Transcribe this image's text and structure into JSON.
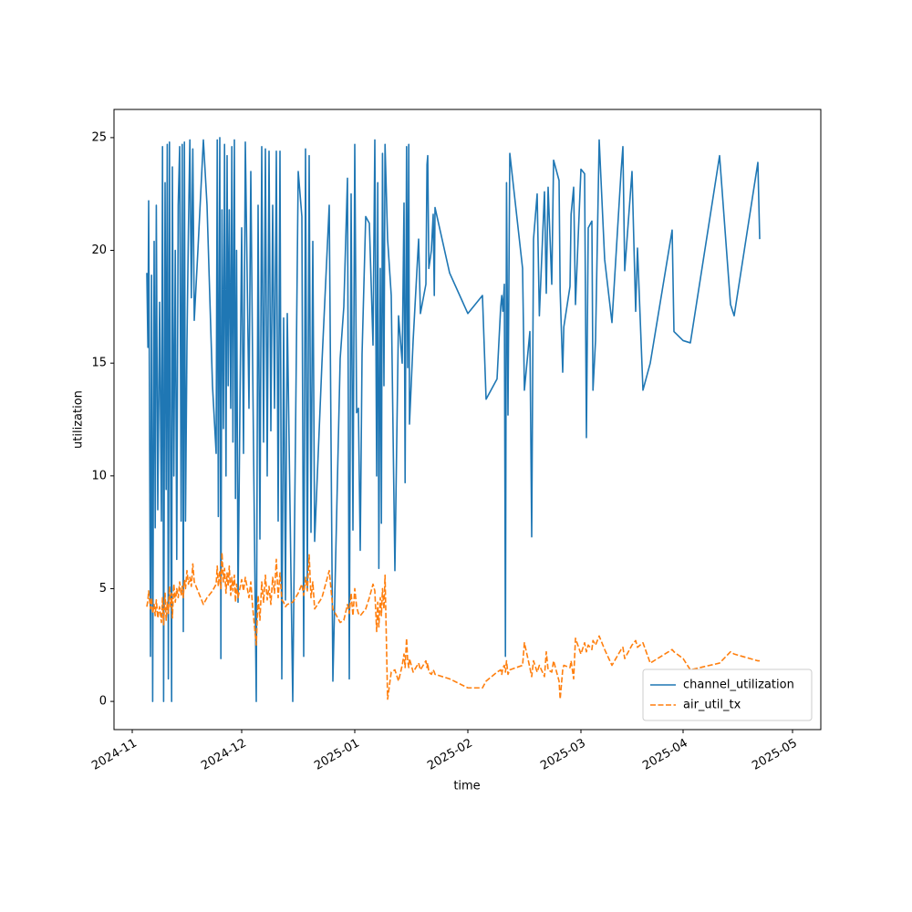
{
  "chart_data": {
    "type": "line",
    "xlabel": "time",
    "ylabel": "utilization",
    "x": [
      4,
      4.3,
      4.5,
      5,
      5.3,
      5.6,
      6,
      6.3,
      6.6,
      7,
      7.5,
      8,
      8.3,
      8.6,
      9,
      9.3,
      9.6,
      9.9,
      10.2,
      10.5,
      10.8,
      11,
      11.4,
      11.8,
      12.2,
      12.6,
      13,
      13.4,
      13.7,
      14,
      14.3,
      14.6,
      15,
      15.4,
      15.8,
      16.2,
      16.6,
      17,
      18,
      19.5,
      20.5,
      22,
      23,
      23.3,
      23.6,
      24,
      24.3,
      24.6,
      25,
      25.3,
      25.7,
      26,
      26.3,
      26.6,
      27,
      27.3,
      27.6,
      28,
      28.3,
      28.6,
      29,
      30,
      30.5,
      31,
      32,
      32.5,
      33,
      34,
      34.5,
      35,
      35.5,
      36,
      36.5,
      37,
      37.5,
      38,
      38.5,
      39,
      39.5,
      40,
      40.5,
      41,
      41.5,
      42,
      42.5,
      44,
      45.5,
      46.5,
      47,
      47.5,
      48,
      48.5,
      49,
      49.5,
      50,
      52,
      54,
      55,
      57,
      58,
      59,
      59.5,
      60,
      60.5,
      61,
      61.5,
      62,
      62.5,
      63,
      64,
      65,
      66,
      66.5,
      67,
      67.3,
      67.6,
      68,
      68.3,
      68.6,
      69,
      69.3,
      70,
      71,
      72,
      73,
      74,
      74.5,
      74.8,
      75.2,
      75.5,
      75.8,
      76,
      77,
      78.5,
      79,
      80.5,
      80.8,
      81,
      81.3,
      82,
      82.5,
      82.8,
      83,
      87,
      92,
      96,
      97,
      100,
      101,
      101.3,
      101.6,
      102,
      102.3,
      102.6,
      103,
      103.5,
      107,
      107.5,
      109,
      109.5,
      110,
      111,
      111.6,
      113,
      113.5,
      114,
      115,
      115.5,
      117,
      117.3,
      118,
      118.3,
      120,
      120.3,
      121,
      121.5,
      123,
      124,
      124.5,
      125,
      126,
      126.3,
      127,
      128,
      129.5,
      131.5,
      134,
      134.5,
      135,
      137,
      138,
      138.5,
      140,
      142,
      148,
      148.5,
      151,
      153,
      161,
      164,
      165,
      171.5,
      172
    ],
    "series": [
      {
        "name": "channel_utilization",
        "color": "#1f77b4",
        "linestyle": "solid",
        "values": [
          19,
          15.7,
          22.2,
          2,
          18.9,
          0,
          20.4,
          7.7,
          22,
          8.5,
          17.7,
          8,
          24.6,
          0,
          23,
          9.4,
          24.7,
          1,
          24.8,
          11,
          0,
          23.7,
          10,
          20,
          6.3,
          22,
          24.6,
          8,
          24.7,
          3.1,
          24.8,
          8,
          15.9,
          20.9,
          24.9,
          17.9,
          24.5,
          16.9,
          20,
          24.9,
          22,
          14,
          11,
          24.9,
          8.2,
          25,
          1.9,
          21.8,
          12.1,
          24.7,
          10,
          24.2,
          14,
          21.8,
          13,
          24.6,
          11.5,
          24.9,
          9,
          20,
          4.4,
          21,
          11,
          24.8,
          13,
          23.5,
          15,
          0,
          22,
          7.2,
          24.6,
          11.5,
          24.5,
          10,
          24.4,
          12,
          22,
          13,
          24.4,
          8,
          24.4,
          1,
          17,
          4.5,
          17.2,
          0,
          23.5,
          21.5,
          2,
          24.5,
          5,
          24.2,
          7.5,
          20.4,
          7.1,
          15,
          22,
          0.9,
          15.2,
          17.5,
          23.2,
          1,
          22.5,
          7.6,
          24.7,
          12.8,
          13,
          6.7,
          15.4,
          21.5,
          21.2,
          15.8,
          24.9,
          10,
          23,
          5.9,
          19.2,
          7.9,
          24.3,
          14,
          24.7,
          20.5,
          18,
          5.8,
          17.1,
          15,
          22.1,
          9.7,
          24.6,
          14.8,
          24.7,
          12.3,
          16,
          20.5,
          17.2,
          18.5,
          23.8,
          24.2,
          19.2,
          20,
          21.6,
          18,
          21.9,
          19,
          17.2,
          18,
          13.4,
          14.3,
          17.5,
          18,
          17.3,
          18.5,
          2,
          23,
          12.7,
          24.3,
          19.2,
          13.8,
          16.4,
          7.3,
          20.5,
          22.5,
          17.1,
          22.6,
          18.1,
          22.8,
          18.5,
          24,
          23.1,
          18.2,
          14.6,
          16.6,
          18.4,
          21.6,
          22.8,
          17.6,
          23.6,
          23.4,
          11.7,
          21,
          21.3,
          13.8,
          16,
          24.9,
          19.6,
          16.8,
          23.5,
          24.6,
          19.1,
          23.5,
          17.3,
          20.1,
          13.8,
          15,
          20.9,
          16.4,
          16,
          15.9,
          24.2,
          17.6,
          17.1,
          23.9,
          20.5
        ]
      },
      {
        "name": "air_util_tx",
        "color": "#ff7f0e",
        "linestyle": "dashed",
        "values": [
          4.2,
          4.5,
          4.9,
          4.1,
          4.6,
          3.9,
          4.3,
          3.8,
          4.5,
          3.7,
          4.2,
          3.5,
          4.6,
          3.4,
          4.8,
          3.6,
          4.4,
          3.9,
          5.1,
          4.2,
          4.8,
          3.7,
          5.2,
          4.4,
          5,
          4.6,
          5.3,
          4.7,
          5.1,
          4.6,
          5.4,
          5,
          5.8,
          5.2,
          5.5,
          5.1,
          6.1,
          5.3,
          4.9,
          4.3,
          4.6,
          4.9,
          5.2,
          6,
          5.1,
          5.8,
          5,
          6.6,
          5.3,
          5.9,
          4.8,
          5.7,
          5.1,
          6,
          4.7,
          5.5,
          4.9,
          5.6,
          4.4,
          5.2,
          4.6,
          5.4,
          4.9,
          5.5,
          4.6,
          5.3,
          4.2,
          2.5,
          4.7,
          3.6,
          5.3,
          4.4,
          5.6,
          4.5,
          5.1,
          4.3,
          5.5,
          4.8,
          6.3,
          4.6,
          5.7,
          4.5,
          4.4,
          4.2,
          4.3,
          4.4,
          4.8,
          5.2,
          4.7,
          5.5,
          4.9,
          6.5,
          4.6,
          5.3,
          4.1,
          4.6,
          5.8,
          4.1,
          3.5,
          3.6,
          4.3,
          3.9,
          4.8,
          3.8,
          5,
          4.2,
          3.9,
          3.8,
          3.9,
          4.1,
          4.6,
          5.2,
          4.9,
          3.1,
          4.4,
          3.3,
          4.6,
          3.8,
          5,
          4.1,
          5.6,
          0.1,
          1.3,
          1.4,
          0.9,
          1.6,
          2.1,
          1.5,
          2.8,
          1.8,
          1.5,
          1.9,
          1.3,
          1.7,
          1.4,
          1.8,
          1.5,
          1.7,
          1.3,
          1.2,
          1.4,
          1.3,
          1.2,
          1,
          0.6,
          0.6,
          0.9,
          1.3,
          1.4,
          1.2,
          1.5,
          1.6,
          1.3,
          1.8,
          1.2,
          1.4,
          1.6,
          2.6,
          1.5,
          1.1,
          1.8,
          1.3,
          1.6,
          1.1,
          2.2,
          1.4,
          1.3,
          1.8,
          0.9,
          0.1,
          1.4,
          1.6,
          1.5,
          1.8,
          1,
          2.8,
          2.1,
          2.6,
          2.2,
          2.5,
          2.3,
          2.7,
          2.5,
          2.9,
          2.3,
          1.6,
          2.3,
          2.4,
          1.9,
          2.5,
          2.7,
          2.4,
          2.6,
          1.7,
          2.3,
          2.2,
          1.9,
          1.4,
          1.7,
          2.2,
          2.1,
          1.8,
          1.8
        ]
      }
    ],
    "xlim": [
      -5,
      188.75
    ],
    "xticks": [
      {
        "value": 0,
        "label": "2024-11"
      },
      {
        "value": 30,
        "label": "2024-12"
      },
      {
        "value": 61,
        "label": "2025-01"
      },
      {
        "value": 92,
        "label": "2025-02"
      },
      {
        "value": 123,
        "label": "2025-03"
      },
      {
        "value": 151,
        "label": "2025-04"
      },
      {
        "value": 181,
        "label": "2025-05"
      }
    ],
    "ylim": [
      -1.25,
      26.25
    ],
    "yticks": [
      0,
      5,
      10,
      15,
      20,
      25
    ],
    "legend": "lower right"
  }
}
